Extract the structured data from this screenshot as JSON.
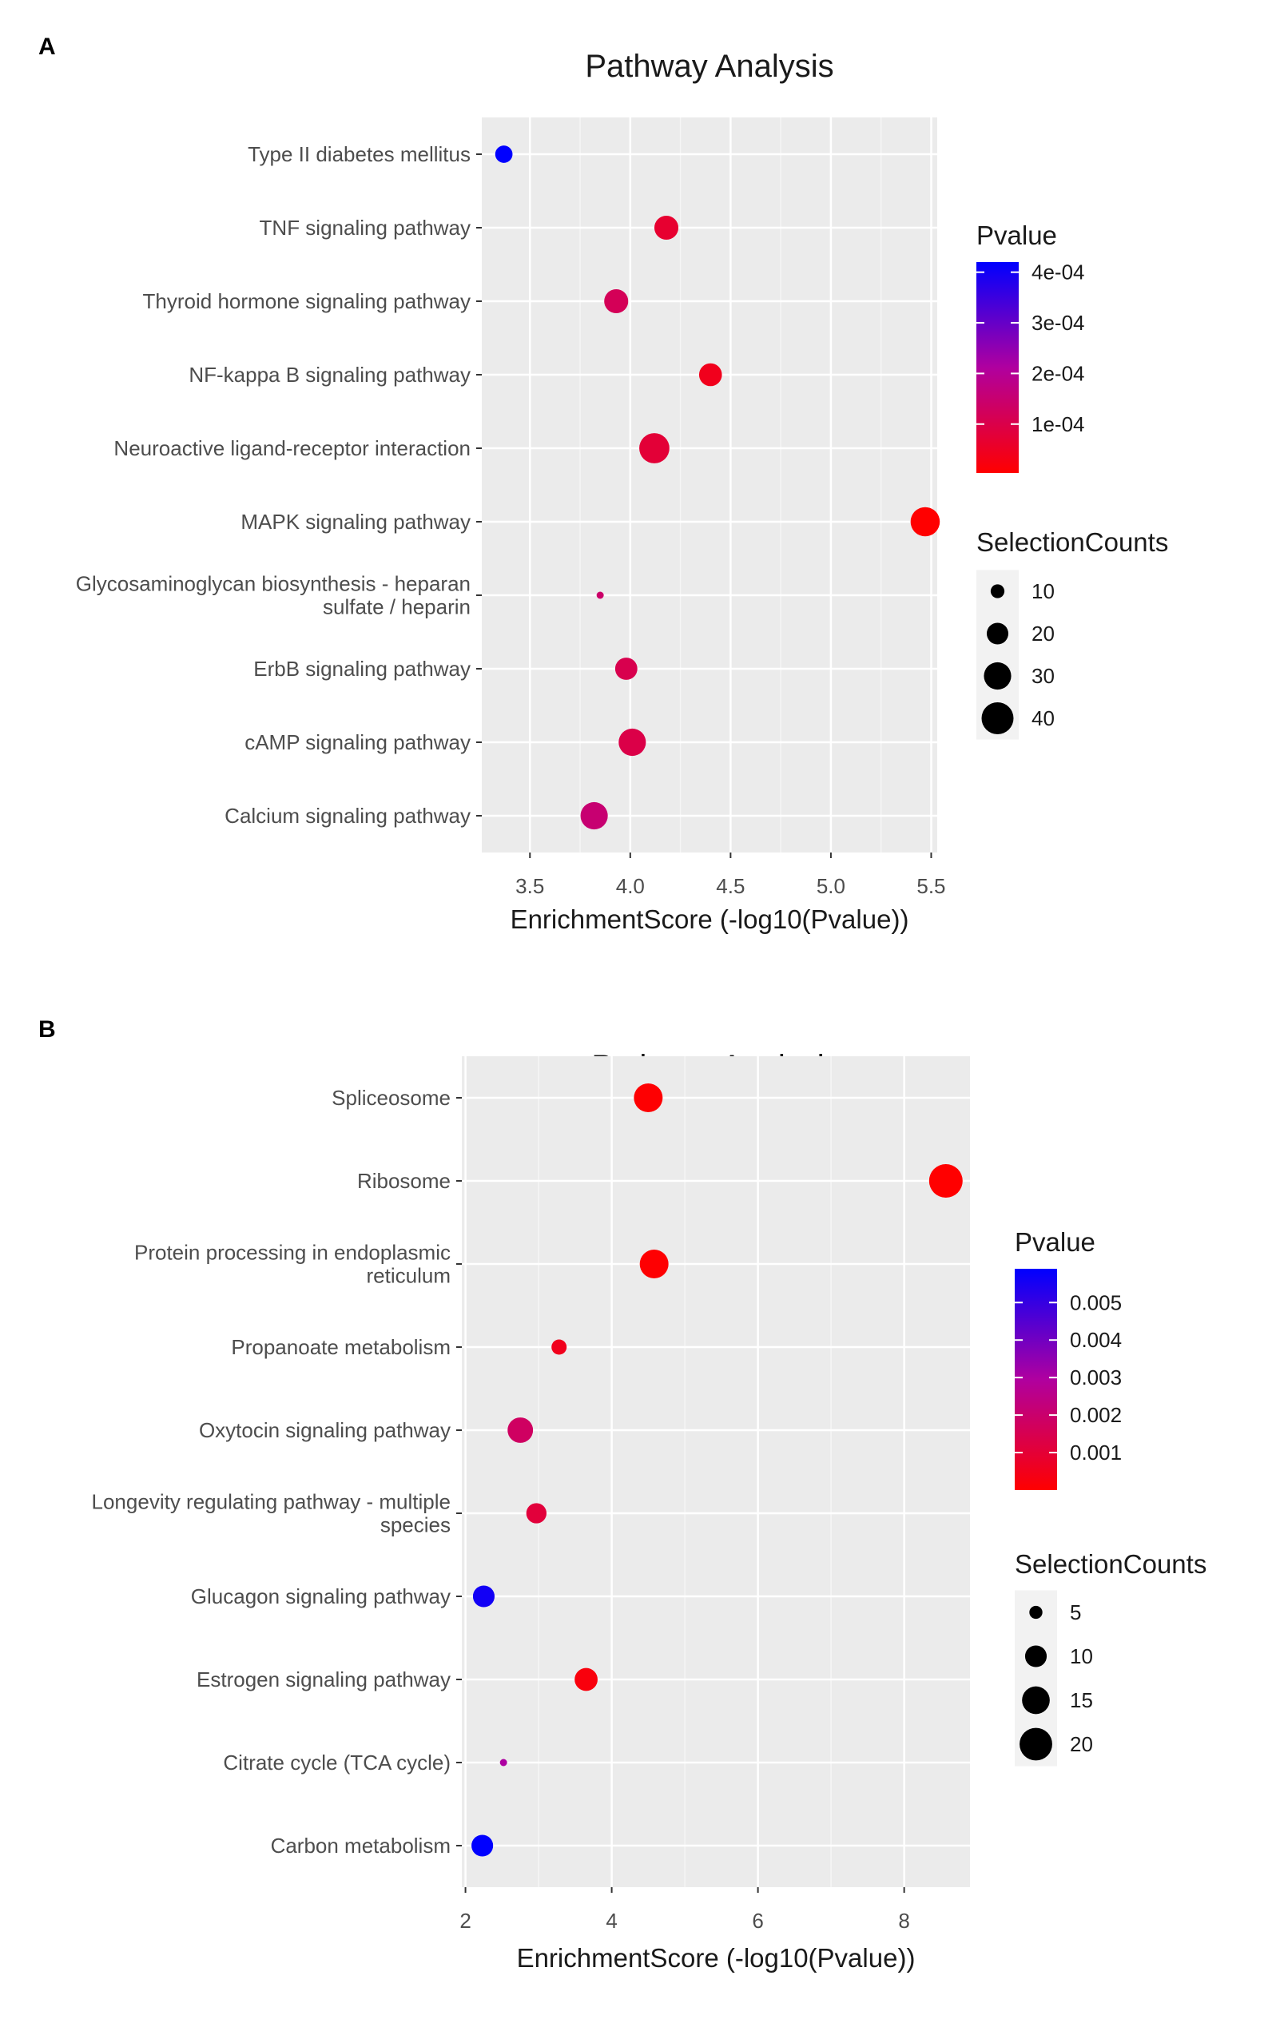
{
  "chart_data": [
    {
      "panel": "A",
      "type": "scatter",
      "title": "Pathway Analysis",
      "xlabel": "EnrichmentScore (-log10(Pvalue))",
      "ylabel": "",
      "xlim": [
        3.26,
        5.53
      ],
      "xticks": [
        3.5,
        4.0,
        4.5,
        5.0,
        5.5
      ],
      "xtick_labels": [
        "3.5",
        "4.0",
        "4.5",
        "5.0",
        "5.5"
      ],
      "grid": true,
      "categories": [
        "Type II diabetes mellitus",
        "TNF signaling pathway",
        "Thyroid hormone signaling pathway",
        "NF-kappa B signaling pathway",
        "Neuroactive ligand-receptor interaction",
        "MAPK signaling pathway",
        "Glycosaminoglycan biosynthesis - heparan sulfate / heparin",
        "ErbB signaling pathway",
        "cAMP signaling pathway",
        "Calcium signaling pathway"
      ],
      "category_lines": [
        [
          "Type II diabetes mellitus"
        ],
        [
          "TNF signaling pathway"
        ],
        [
          "Thyroid hormone signaling pathway"
        ],
        [
          "NF-kappa B signaling pathway"
        ],
        [
          "Neuroactive ligand-receptor interaction"
        ],
        [
          "MAPK signaling pathway"
        ],
        [
          "Glycosaminoglycan biosynthesis - heparan",
          "sulfate / heparin"
        ],
        [
          "ErbB signaling pathway"
        ],
        [
          "cAMP signaling pathway"
        ],
        [
          "Calcium signaling pathway"
        ]
      ],
      "enrichment": [
        3.37,
        4.18,
        3.93,
        4.4,
        4.12,
        5.47,
        3.85,
        3.98,
        4.01,
        3.82
      ],
      "pvalue": [
        0.00042,
        6.6e-05,
        0.000118,
        4e-05,
        7.6e-05,
        3.4e-06,
        0.000141,
        0.000105,
        9.8e-05,
        0.000151
      ],
      "selection_counts": [
        14,
        24,
        24,
        22,
        36,
        34,
        5,
        21,
        30,
        30
      ],
      "legend": {
        "color_title": "Pvalue",
        "color_ticks": [
          0.0004,
          0.0003,
          0.0002,
          0.0001
        ],
        "color_tick_labels": [
          "4e-04",
          "3e-04",
          "2e-04",
          "1e-04"
        ],
        "color_range": [
          3.4e-06,
          0.00042
        ],
        "size_title": "SelectionCounts",
        "size_ticks": [
          10,
          20,
          30,
          40
        ],
        "size_tick_labels": [
          "10",
          "20",
          "30",
          "40"
        ],
        "count_range": [
          5,
          40
        ]
      }
    },
    {
      "panel": "B",
      "type": "scatter",
      "title": "Pathway Analysis",
      "xlabel": "EnrichmentScore (-log10(Pvalue))",
      "ylabel": "",
      "xlim": [
        1.95,
        8.9
      ],
      "xticks": [
        2,
        4,
        6,
        8
      ],
      "xtick_labels": [
        "2",
        "4",
        "6",
        "8"
      ],
      "grid": true,
      "categories": [
        "Spliceosome",
        "Ribosome",
        "Protein processing in endoplasmic reticulum",
        "Propanoate metabolism",
        "Oxytocin signaling pathway",
        "Longevity regulating pathway - multiple species",
        "Glucagon signaling pathway",
        "Estrogen signaling pathway",
        "Citrate cycle (TCA cycle)",
        "Carbon metabolism"
      ],
      "category_lines": [
        [
          "Spliceosome"
        ],
        [
          "Ribosome"
        ],
        [
          "Protein processing in endoplasmic",
          "reticulum"
        ],
        [
          "Propanoate metabolism"
        ],
        [
          "Oxytocin signaling pathway"
        ],
        [
          "Longevity regulating pathway - multiple",
          "species"
        ],
        [
          "Glucagon signaling pathway"
        ],
        [
          "Estrogen signaling pathway"
        ],
        [
          "Citrate cycle (TCA cycle)"
        ],
        [
          "Carbon metabolism"
        ]
      ],
      "enrichment": [
        4.5,
        8.57,
        4.58,
        3.28,
        2.75,
        2.97,
        2.25,
        3.65,
        2.52,
        2.23
      ],
      "pvalue": [
        3e-05,
        3e-09,
        3e-05,
        0.00052,
        0.0018,
        0.0011,
        0.0056,
        0.00022,
        0.003,
        0.0059
      ],
      "selection_counts": [
        16,
        21,
        16,
        6,
        13,
        9,
        10,
        11,
        3,
        10
      ],
      "legend": {
        "color_title": "Pvalue",
        "color_ticks": [
          0.005,
          0.004,
          0.003,
          0.002,
          0.001
        ],
        "color_tick_labels": [
          "0.005",
          "0.004",
          "0.003",
          "0.002",
          "0.001"
        ],
        "color_range": [
          2.7e-09,
          0.0059
        ],
        "size_title": "SelectionCounts",
        "size_ticks": [
          5,
          10,
          15,
          20
        ],
        "size_tick_labels": [
          "5",
          "10",
          "15",
          "20"
        ],
        "count_range": [
          3,
          21
        ]
      }
    }
  ]
}
